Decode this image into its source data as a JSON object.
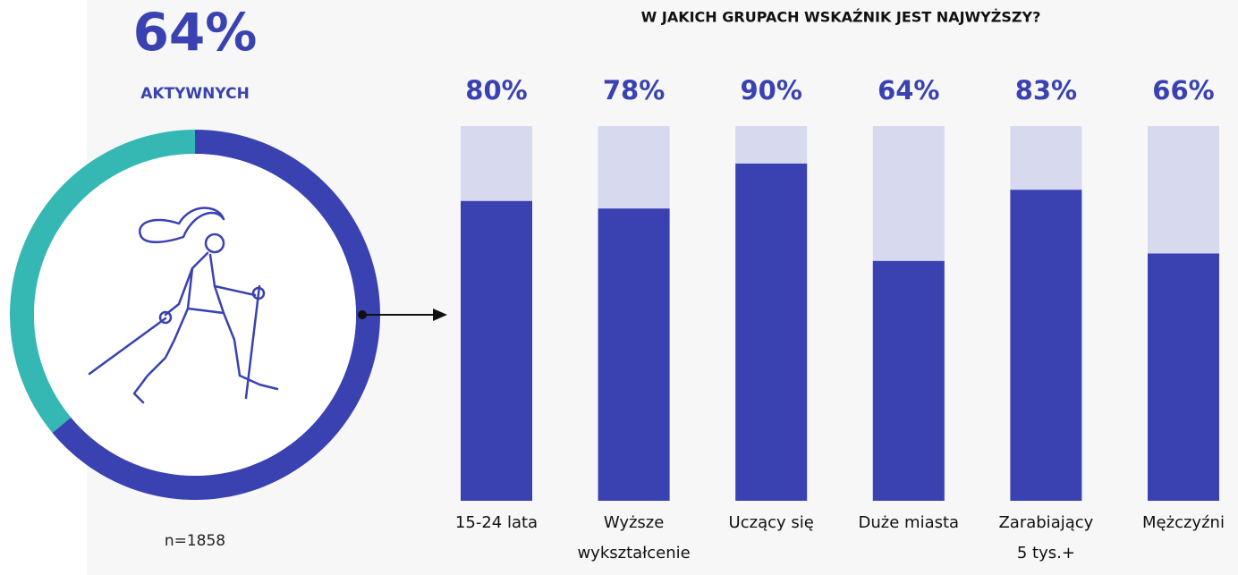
{
  "chart_data": [
    {
      "type": "donut",
      "values": [
        64,
        36
      ],
      "value_labels": [
        "64%",
        null
      ],
      "colors": [
        "#3942b0",
        "#35b8b4"
      ],
      "subtitle": "AKTYWNYCH",
      "note": "n=1858"
    },
    {
      "type": "bar",
      "title": "W JAKICH GRUPACH WSKAŹNIK JEST NAJWYŻSZY?",
      "categories": [
        [
          "15-24 lata"
        ],
        [
          "Wyższe",
          "wykształcenie"
        ],
        [
          "Uczący się"
        ],
        [
          "Duże miasta"
        ],
        [
          "Zarabiający",
          "5 tys.+"
        ],
        [
          "Mężczyźni"
        ]
      ],
      "values": [
        80,
        78,
        90,
        64,
        83,
        66
      ],
      "value_labels": [
        "80%",
        "78%",
        "90%",
        "64%",
        "83%",
        "66%"
      ],
      "color": "#3942b0",
      "background_color": "#d7d9ef",
      "ylim": [
        0,
        100
      ]
    }
  ]
}
